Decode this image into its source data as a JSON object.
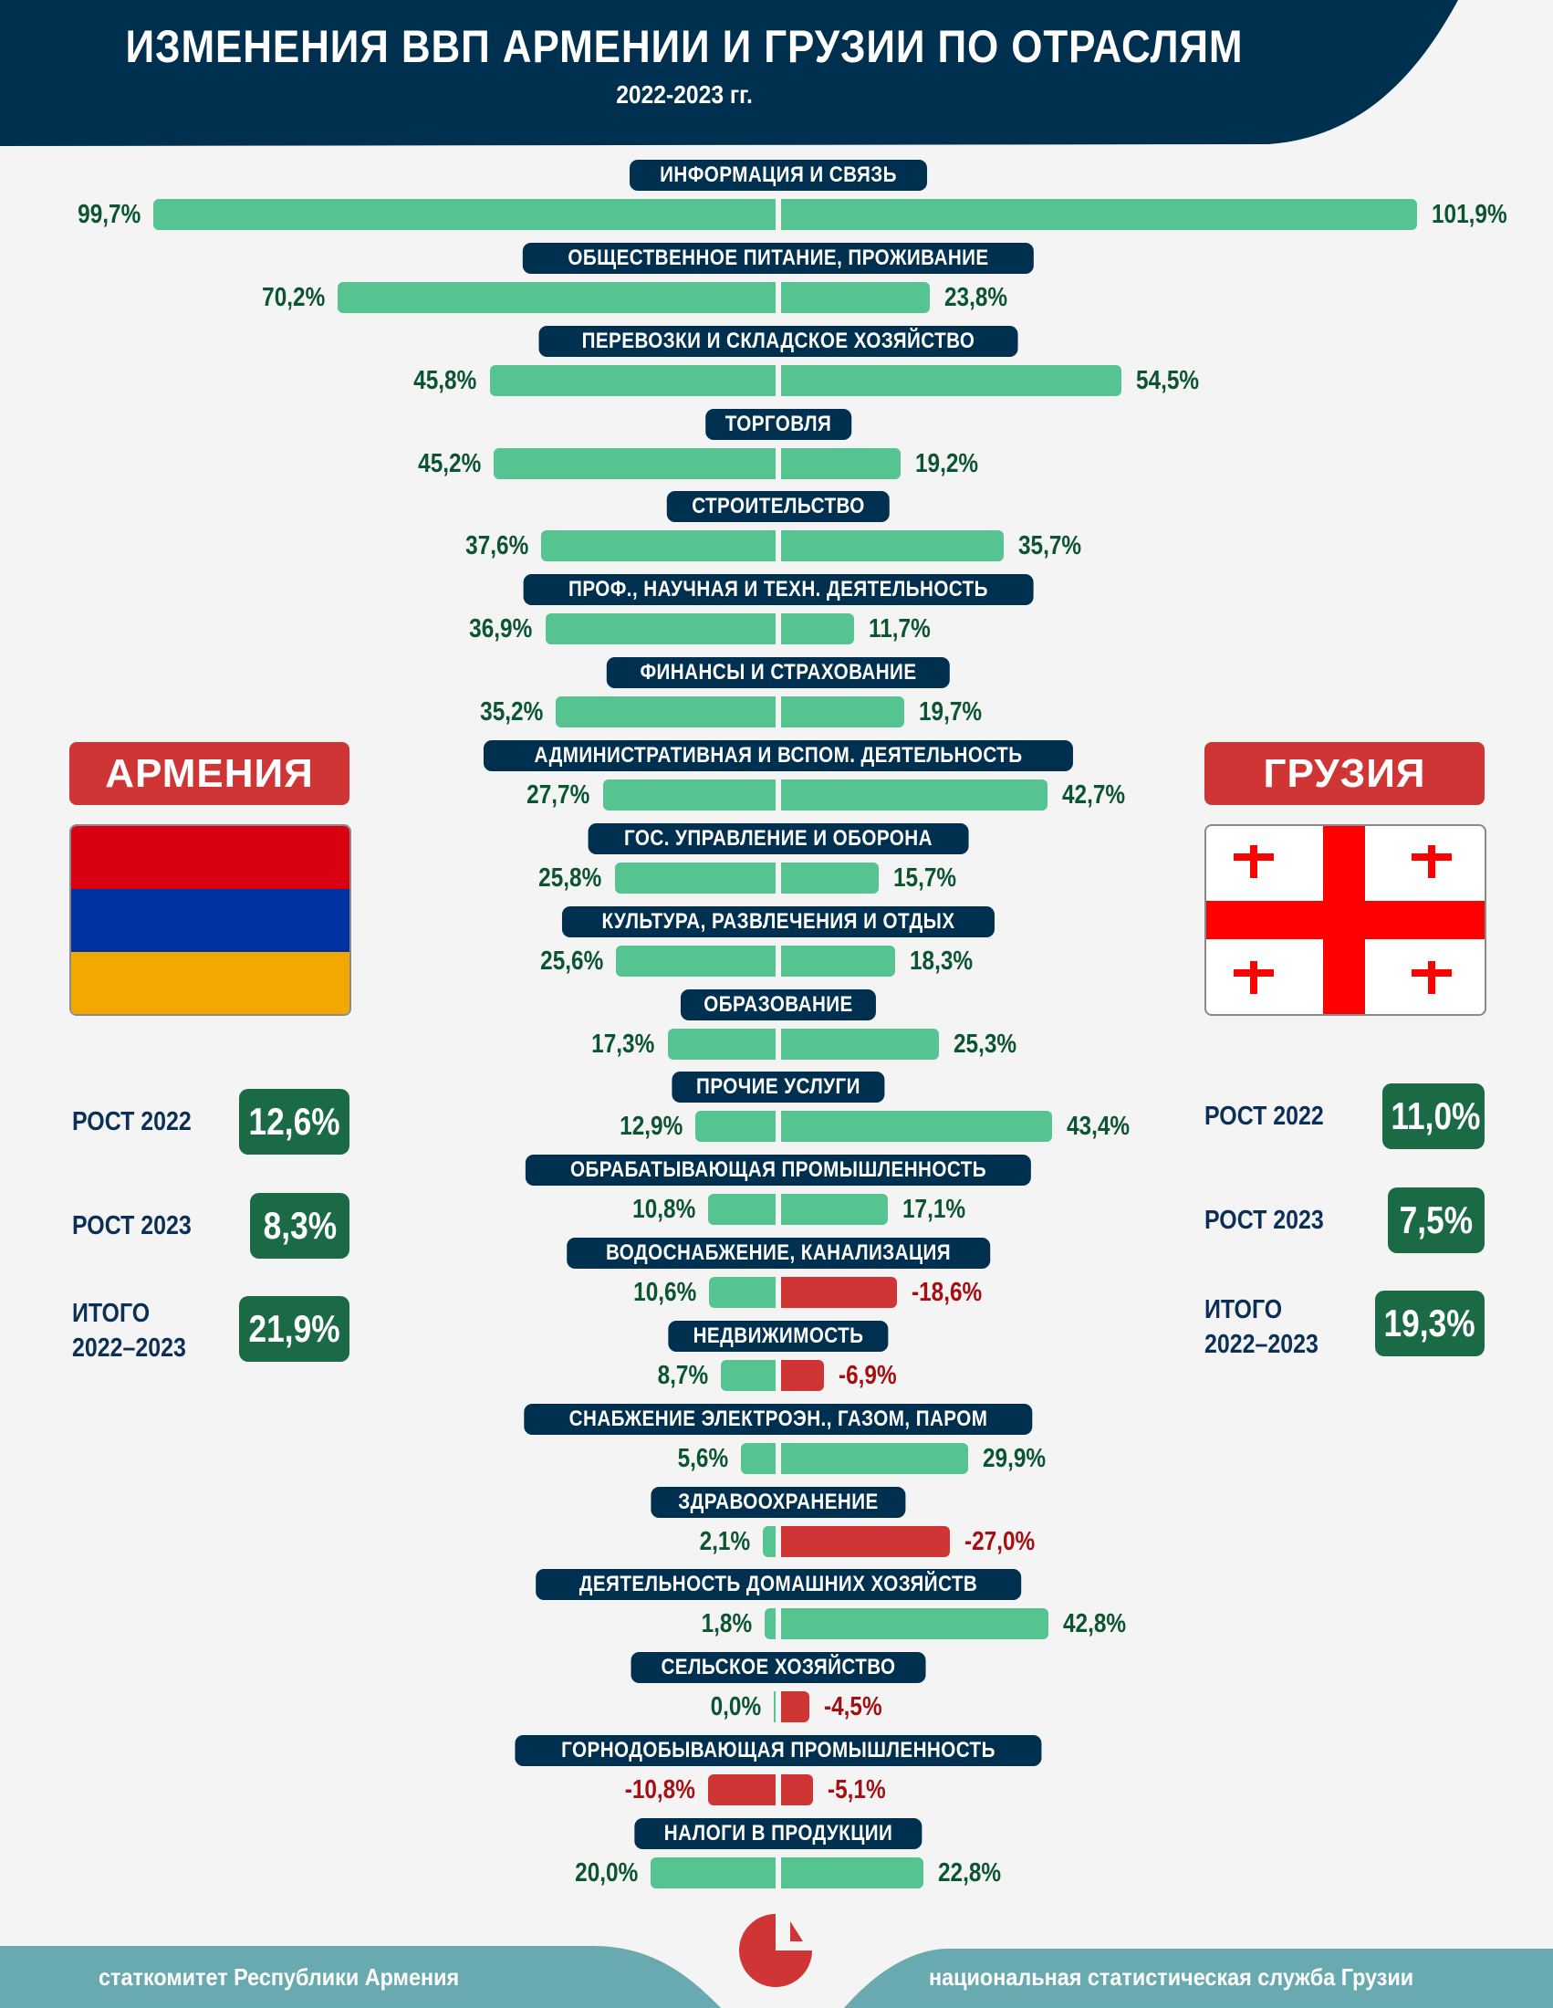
{
  "header": {
    "title": "ИЗМЕНЕНИЯ ВВП АРМЕНИИ И ГРУЗИИ ПО ОТРАСЛЯМ",
    "subtitle": "2022-2023 гг."
  },
  "colors": {
    "navy": "#00304F",
    "positive_bar": "#55C491",
    "negative_bar": "#D03536",
    "positive_text": "#0B5530",
    "negative_text": "#A50F12",
    "stat_box": "#1A6B45",
    "country_label": "#D03536",
    "footer": "#69AAB0"
  },
  "armenia": {
    "name": "АРМЕНИЯ",
    "flag_icon": "armenia-flag-icon",
    "flag_colors": [
      "#D90012",
      "#0033A0",
      "#F2A800"
    ],
    "stats": [
      {
        "label": "РОСТ 2022",
        "value": "12,6%"
      },
      {
        "label": "РОСТ 2023",
        "value": "8,3%"
      },
      {
        "label_line1": "ИТОГО",
        "label_line2": "2022–2023",
        "value": "21,9%"
      }
    ]
  },
  "georgia": {
    "name": "ГРУЗИЯ",
    "flag_icon": "georgia-flag-icon",
    "flag_colors": [
      "#FFFFFF",
      "#FF0000"
    ],
    "stats": [
      {
        "label": "РОСТ 2022",
        "value": "11,0%"
      },
      {
        "label": "РОСТ 2023",
        "value": "7,5%"
      },
      {
        "label_line1": "ИТОГО",
        "label_line2": "2022–2023",
        "value": "19,3%"
      }
    ]
  },
  "chart_data": {
    "type": "bar",
    "orientation": "horizontal-diverging",
    "title": "ИЗМЕНЕНИЯ ВВП АРМЕНИИ И ГРУЗИИ ПО ОТРАСЛЯМ",
    "subtitle": "2022-2023 гг.",
    "unit": "%",
    "series": [
      {
        "name": "АРМЕНИЯ",
        "side": "left"
      },
      {
        "name": "ГРУЗИЯ",
        "side": "right"
      }
    ],
    "categories": [
      "ИНФОРМАЦИЯ И СВЯЗЬ",
      "ОБЩЕСТВЕННОЕ ПИТАНИЕ, ПРОЖИВАНИЕ",
      "ПЕРЕВОЗКИ И СКЛАДСКОЕ ХОЗЯЙСТВО",
      "ТОРГОВЛЯ",
      "СТРОИТЕЛЬСТВО",
      "ПРОФ., НАУЧНАЯ И ТЕХН. ДЕЯТЕЛЬНОСТЬ",
      "ФИНАНСЫ И СТРАХОВАНИЕ",
      "АДМИНИСТРАТИВНАЯ И ВСПОМ. ДЕЯТЕЛЬНОСТЬ",
      "ГОС. УПРАВЛЕНИЕ И ОБОРОНА",
      "КУЛЬТУРА, РАЗВЛЕЧЕНИЯ И ОТДЫХ",
      "ОБРАЗОВАНИЕ",
      "ПРОЧИЕ УСЛУГИ",
      "ОБРАБАТЫВАЮЩАЯ ПРОМЫШЛЕННОСТЬ",
      "ВОДОСНАБЖЕНИЕ, КАНАЛИЗАЦИЯ",
      "НЕДВИЖИМОСТЬ",
      "СНАБЖЕНИЕ ЭЛЕКТРОЭН., ГАЗОМ, ПАРОМ",
      "ЗДРАВООХРАНЕНИЕ",
      "ДЕЯТЕЛЬНОСТЬ ДОМАШНИХ ХОЗЯЙСТВ",
      "СЕЛЬСКОЕ ХОЗЯЙСТВО",
      "ГОРНОДОБЫВАЮЩАЯ ПРОМЫШЛЕННОСТЬ",
      "НАЛОГИ В ПРОДУКЦИИ"
    ],
    "armenia_values": [
      99.7,
      70.2,
      45.8,
      45.2,
      37.6,
      36.9,
      35.2,
      27.7,
      25.8,
      25.6,
      17.3,
      12.9,
      10.8,
      10.6,
      8.7,
      5.6,
      2.1,
      1.8,
      0.0,
      -10.8,
      20.0
    ],
    "georgia_values": [
      101.9,
      23.8,
      54.5,
      19.2,
      35.7,
      11.7,
      19.7,
      42.7,
      15.7,
      18.3,
      25.3,
      43.4,
      17.1,
      -18.6,
      -6.9,
      29.9,
      -27.0,
      42.8,
      -4.5,
      -5.1,
      22.8
    ],
    "armenia_labels": [
      "99,7%",
      "70,2%",
      "45,8%",
      "45,2%",
      "37,6%",
      "36,9%",
      "35,2%",
      "27,7%",
      "25,8%",
      "25,6%",
      "17,3%",
      "12,9%",
      "10,8%",
      "10,6%",
      "8,7%",
      "5,6%",
      "2,1%",
      "1,8%",
      "0,0%",
      "-10,8%",
      "20,0%"
    ],
    "georgia_labels": [
      "101,9%",
      "23,8%",
      "54,5%",
      "19,2%",
      "35,7%",
      "11,7%",
      "19,7%",
      "42,7%",
      "15,7%",
      "18,3%",
      "25,3%",
      "43,4%",
      "17,1%",
      "-18,6%",
      "-6,9%",
      "29,9%",
      "-27,0%",
      "42,8%",
      "-4,5%",
      "-5,1%",
      "22,8%"
    ],
    "xlabel": "",
    "ylabel": "",
    "legend": "none",
    "grid": false
  },
  "footer": {
    "left_source": "статкомитет Республики Армения",
    "right_source": "национальная статистическая служба Грузии",
    "logo_icon": "pie-chart-logo-icon"
  }
}
